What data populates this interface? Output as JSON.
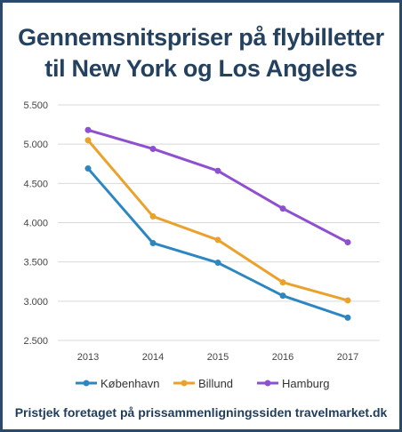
{
  "title_lines": [
    "Gennemsnitspriser på flybilletter",
    "til New York og Los Angeles"
  ],
  "footer": "Pristjek foretaget på prissammenligningssiden travelmarket.dk",
  "chart_data": {
    "type": "line",
    "title": "Gennemsnitspriser på flybilletter til New York og Los Angeles",
    "x": [
      "2013",
      "2014",
      "2015",
      "2016",
      "2017"
    ],
    "ylim": [
      2500,
      5500
    ],
    "yticks": [
      2500,
      3000,
      3500,
      4000,
      4500,
      5000,
      5500
    ],
    "ytick_labels": [
      "2.500",
      "3.000",
      "3.500",
      "4.000",
      "4.500",
      "5.000",
      "5.500"
    ],
    "grid": true,
    "legend": "bottom",
    "series": [
      {
        "name": "København",
        "color": "#2e86c1",
        "values": [
          4690,
          3740,
          3490,
          3070,
          2790
        ]
      },
      {
        "name": "Billund",
        "color": "#eaa22c",
        "values": [
          5050,
          4080,
          3780,
          3240,
          3010
        ]
      },
      {
        "name": "Hamburg",
        "color": "#8e4fd0",
        "values": [
          5180,
          4940,
          4660,
          4180,
          3750
        ]
      }
    ]
  }
}
